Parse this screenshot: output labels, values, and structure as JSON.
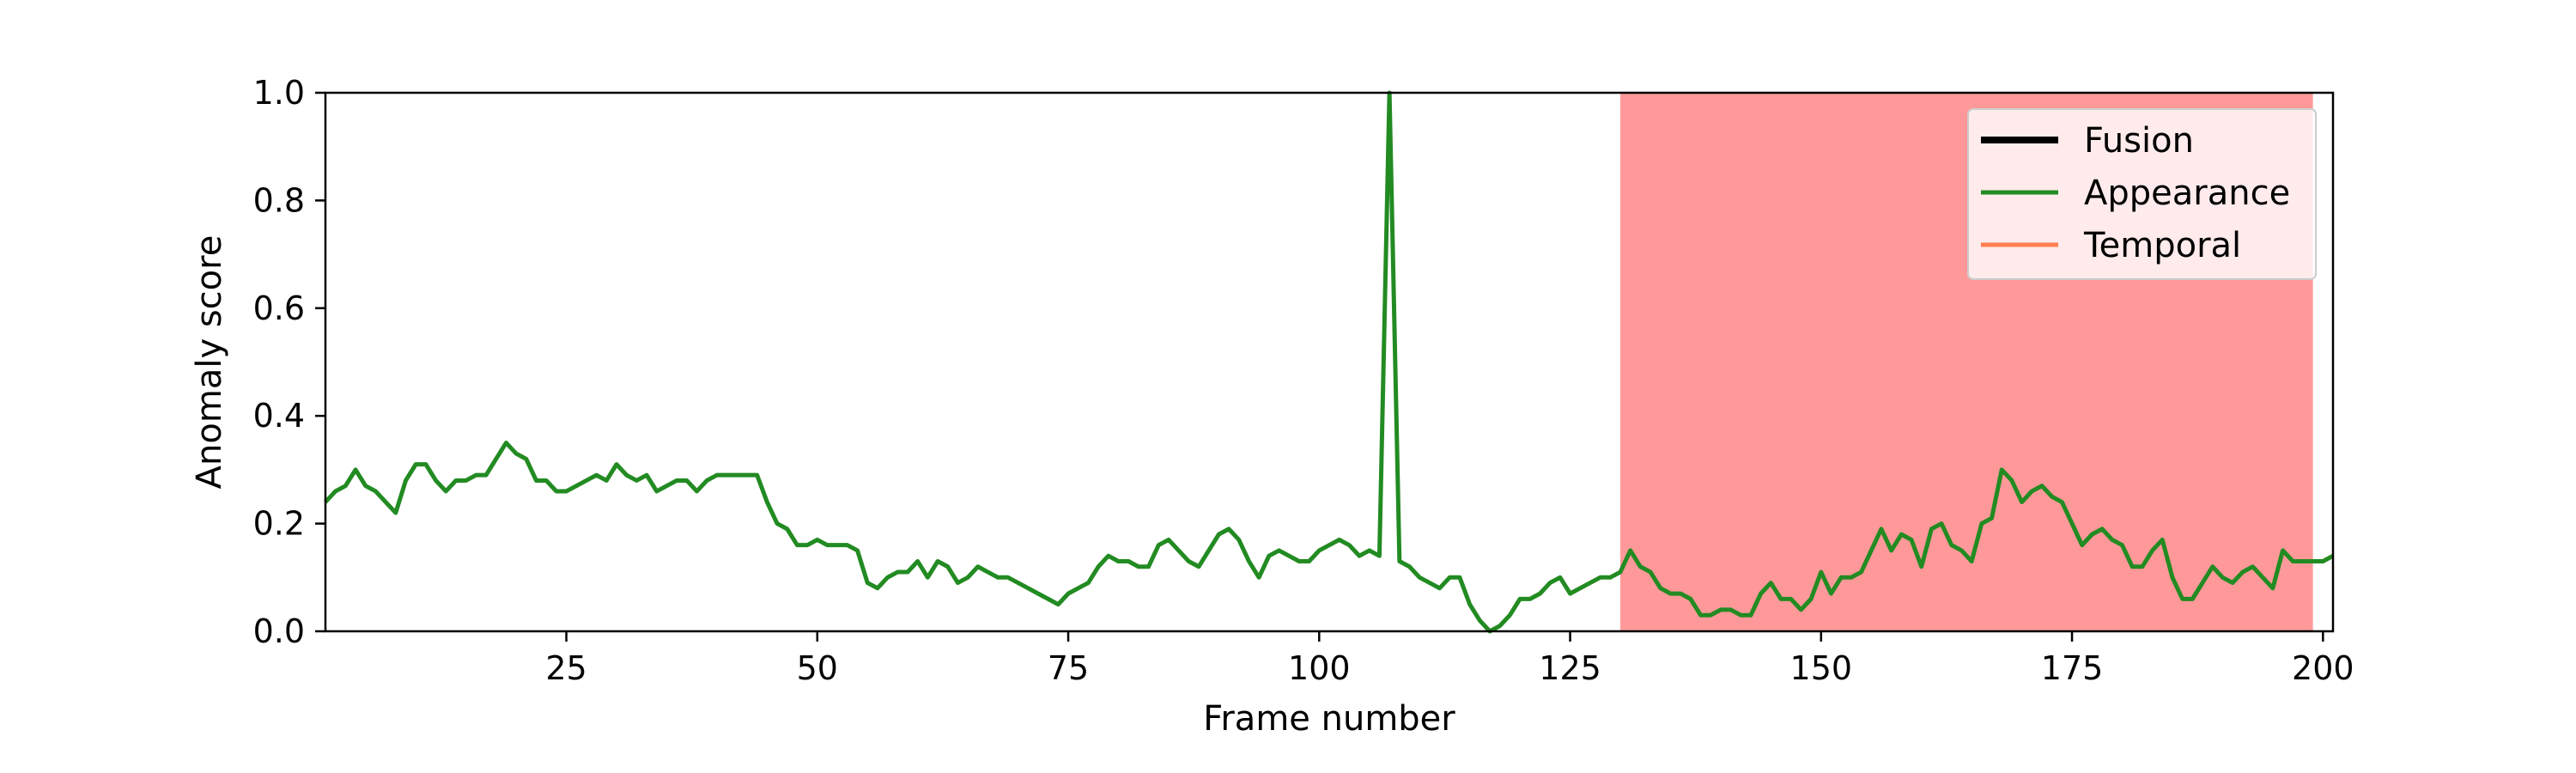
{
  "chart_data": {
    "type": "line",
    "title": "",
    "xlabel": "Frame number",
    "ylabel": "Anomaly score",
    "xlim": [
      1,
      201
    ],
    "ylim": [
      0,
      1.0
    ],
    "xticks": [
      25,
      50,
      75,
      100,
      125,
      150,
      175,
      200
    ],
    "yticks": [
      0.0,
      0.2,
      0.4,
      0.6,
      0.8,
      1.0
    ],
    "ytick_labels": [
      "0.0",
      "0.2",
      "0.4",
      "0.6",
      "0.8",
      "1.0"
    ],
    "grid": false,
    "legend_position": "top-right",
    "anomaly_region": {
      "x_start": 130,
      "x_end": 199,
      "color": "#ff9999"
    },
    "series": [
      {
        "name": "Fusion",
        "color": "#000000",
        "values": []
      },
      {
        "name": "Appearance",
        "color": "#228b22",
        "x": [
          1,
          2,
          3,
          4,
          5,
          6,
          7,
          8,
          9,
          10,
          11,
          12,
          13,
          14,
          15,
          16,
          17,
          18,
          19,
          20,
          21,
          22,
          23,
          24,
          25,
          26,
          27,
          28,
          29,
          30,
          31,
          32,
          33,
          34,
          35,
          36,
          37,
          38,
          39,
          40,
          41,
          42,
          43,
          44,
          45,
          46,
          47,
          48,
          49,
          50,
          51,
          52,
          53,
          54,
          55,
          56,
          57,
          58,
          59,
          60,
          61,
          62,
          63,
          64,
          65,
          66,
          67,
          68,
          69,
          70,
          71,
          72,
          73,
          74,
          75,
          76,
          77,
          78,
          79,
          80,
          81,
          82,
          83,
          84,
          85,
          86,
          87,
          88,
          89,
          90,
          91,
          92,
          93,
          94,
          95,
          96,
          97,
          98,
          99,
          100,
          101,
          102,
          103,
          104,
          105,
          106,
          107,
          108,
          109,
          110,
          111,
          112,
          113,
          114,
          115,
          116,
          117,
          118,
          119,
          120,
          121,
          122,
          123,
          124,
          125,
          126,
          127,
          128,
          129,
          130,
          131,
          132,
          133,
          134,
          135,
          136,
          137,
          138,
          139,
          140,
          141,
          142,
          143,
          144,
          145,
          146,
          147,
          148,
          149,
          150,
          151,
          152,
          153,
          154,
          155,
          156,
          157,
          158,
          159,
          160,
          161,
          162,
          163,
          164,
          165,
          166,
          167,
          168,
          169,
          170,
          171,
          172,
          173,
          174,
          175,
          176,
          177,
          178,
          179,
          180,
          181,
          182,
          183,
          184,
          185,
          186,
          187,
          188,
          189,
          190,
          191,
          192,
          193,
          194,
          195,
          196,
          197,
          198,
          199,
          200,
          201
        ],
        "values": [
          0.24,
          0.26,
          0.27,
          0.3,
          0.27,
          0.26,
          0.24,
          0.22,
          0.28,
          0.31,
          0.31,
          0.28,
          0.26,
          0.28,
          0.28,
          0.29,
          0.29,
          0.32,
          0.35,
          0.33,
          0.32,
          0.28,
          0.28,
          0.26,
          0.26,
          0.27,
          0.28,
          0.29,
          0.28,
          0.31,
          0.29,
          0.28,
          0.29,
          0.26,
          0.27,
          0.28,
          0.28,
          0.26,
          0.28,
          0.29,
          0.29,
          0.29,
          0.29,
          0.29,
          0.24,
          0.2,
          0.19,
          0.16,
          0.16,
          0.17,
          0.16,
          0.16,
          0.16,
          0.15,
          0.09,
          0.08,
          0.1,
          0.11,
          0.11,
          0.13,
          0.1,
          0.13,
          0.12,
          0.09,
          0.1,
          0.12,
          0.11,
          0.1,
          0.1,
          0.09,
          0.08,
          0.07,
          0.06,
          0.05,
          0.07,
          0.08,
          0.09,
          0.12,
          0.14,
          0.13,
          0.13,
          0.12,
          0.12,
          0.16,
          0.17,
          0.15,
          0.13,
          0.12,
          0.15,
          0.18,
          0.19,
          0.17,
          0.13,
          0.1,
          0.14,
          0.15,
          0.14,
          0.13,
          0.13,
          0.15,
          0.16,
          0.17,
          0.16,
          0.14,
          0.15,
          0.14,
          1.0,
          0.13,
          0.12,
          0.1,
          0.09,
          0.08,
          0.1,
          0.1,
          0.05,
          0.02,
          0.0,
          0.01,
          0.03,
          0.06,
          0.06,
          0.07,
          0.09,
          0.1,
          0.07,
          0.08,
          0.09,
          0.1,
          0.1,
          0.11,
          0.15,
          0.12,
          0.11,
          0.08,
          0.07,
          0.07,
          0.06,
          0.03,
          0.03,
          0.04,
          0.04,
          0.03,
          0.03,
          0.07,
          0.09,
          0.06,
          0.06,
          0.04,
          0.06,
          0.11,
          0.07,
          0.1,
          0.1,
          0.11,
          0.15,
          0.19,
          0.15,
          0.18,
          0.17,
          0.12,
          0.19,
          0.2,
          0.16,
          0.15,
          0.13,
          0.2,
          0.21,
          0.3,
          0.28,
          0.24,
          0.26,
          0.27,
          0.25,
          0.24,
          0.2,
          0.16,
          0.18,
          0.19,
          0.17,
          0.16,
          0.12,
          0.12,
          0.15,
          0.17,
          0.1,
          0.06,
          0.06,
          0.09,
          0.12,
          0.1,
          0.09,
          0.11,
          0.12,
          0.1,
          0.08,
          0.15,
          0.13,
          0.13,
          0.13,
          0.13,
          0.14
        ]
      },
      {
        "name": "Temporal",
        "color": "#ff7f50",
        "values": []
      }
    ]
  }
}
